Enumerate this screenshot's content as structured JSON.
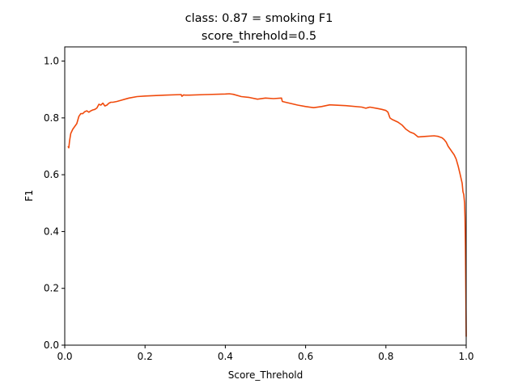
{
  "chart_data": {
    "type": "line",
    "title": "class: 0.87 = smoking F1",
    "subtitle": "score_threhold=0.5",
    "xlabel": "Score_Threhold",
    "ylabel": "F1",
    "xlim": [
      0,
      1
    ],
    "ylim": [
      0,
      1.05
    ],
    "xticks": [
      "0.0",
      "0.2",
      "0.4",
      "0.6",
      "0.8",
      "1.0"
    ],
    "yticks": [
      "0.0",
      "0.2",
      "0.4",
      "0.6",
      "0.8",
      "1.0"
    ],
    "grid": false,
    "legend": "none",
    "colors": {
      "line": "#f04a0c"
    },
    "series": [
      {
        "x": [
          0.008,
          0.01,
          0.012,
          0.015,
          0.02,
          0.025,
          0.03,
          0.035,
          0.04,
          0.045,
          0.05,
          0.055,
          0.06,
          0.065,
          0.07,
          0.075,
          0.08,
          0.085,
          0.09,
          0.095,
          0.1,
          0.105,
          0.11,
          0.115,
          0.12,
          0.13,
          0.14,
          0.15,
          0.16,
          0.18,
          0.2,
          0.25,
          0.29,
          0.292,
          0.296,
          0.3,
          0.31,
          0.35,
          0.4,
          0.41,
          0.42,
          0.44,
          0.46,
          0.48,
          0.5,
          0.52,
          0.54,
          0.542,
          0.55,
          0.58,
          0.6,
          0.62,
          0.64,
          0.66,
          0.7,
          0.74,
          0.75,
          0.755,
          0.76,
          0.78,
          0.79,
          0.8,
          0.805,
          0.81,
          0.815,
          0.83,
          0.84,
          0.85,
          0.86,
          0.87,
          0.88,
          0.9,
          0.92,
          0.93,
          0.94,
          0.945,
          0.95,
          0.955,
          0.96,
          0.965,
          0.97,
          0.975,
          0.98,
          0.985,
          0.99,
          0.992,
          0.994,
          0.996,
          0.997,
          0.998,
          0.999,
          1.0
        ],
        "y": [
          0.7,
          0.695,
          0.72,
          0.745,
          0.76,
          0.77,
          0.78,
          0.805,
          0.815,
          0.815,
          0.822,
          0.825,
          0.82,
          0.825,
          0.828,
          0.83,
          0.835,
          0.848,
          0.845,
          0.852,
          0.842,
          0.845,
          0.852,
          0.855,
          0.855,
          0.858,
          0.862,
          0.866,
          0.87,
          0.875,
          0.877,
          0.88,
          0.882,
          0.876,
          0.881,
          0.88,
          0.88,
          0.882,
          0.884,
          0.885,
          0.883,
          0.875,
          0.872,
          0.866,
          0.87,
          0.868,
          0.87,
          0.858,
          0.855,
          0.845,
          0.84,
          0.836,
          0.84,
          0.846,
          0.843,
          0.838,
          0.834,
          0.836,
          0.838,
          0.833,
          0.83,
          0.826,
          0.82,
          0.8,
          0.795,
          0.785,
          0.775,
          0.76,
          0.75,
          0.745,
          0.733,
          0.735,
          0.737,
          0.735,
          0.73,
          0.724,
          0.715,
          0.7,
          0.69,
          0.68,
          0.67,
          0.655,
          0.63,
          0.6,
          0.57,
          0.54,
          0.53,
          0.5,
          0.45,
          0.35,
          0.2,
          0.03
        ]
      }
    ]
  }
}
